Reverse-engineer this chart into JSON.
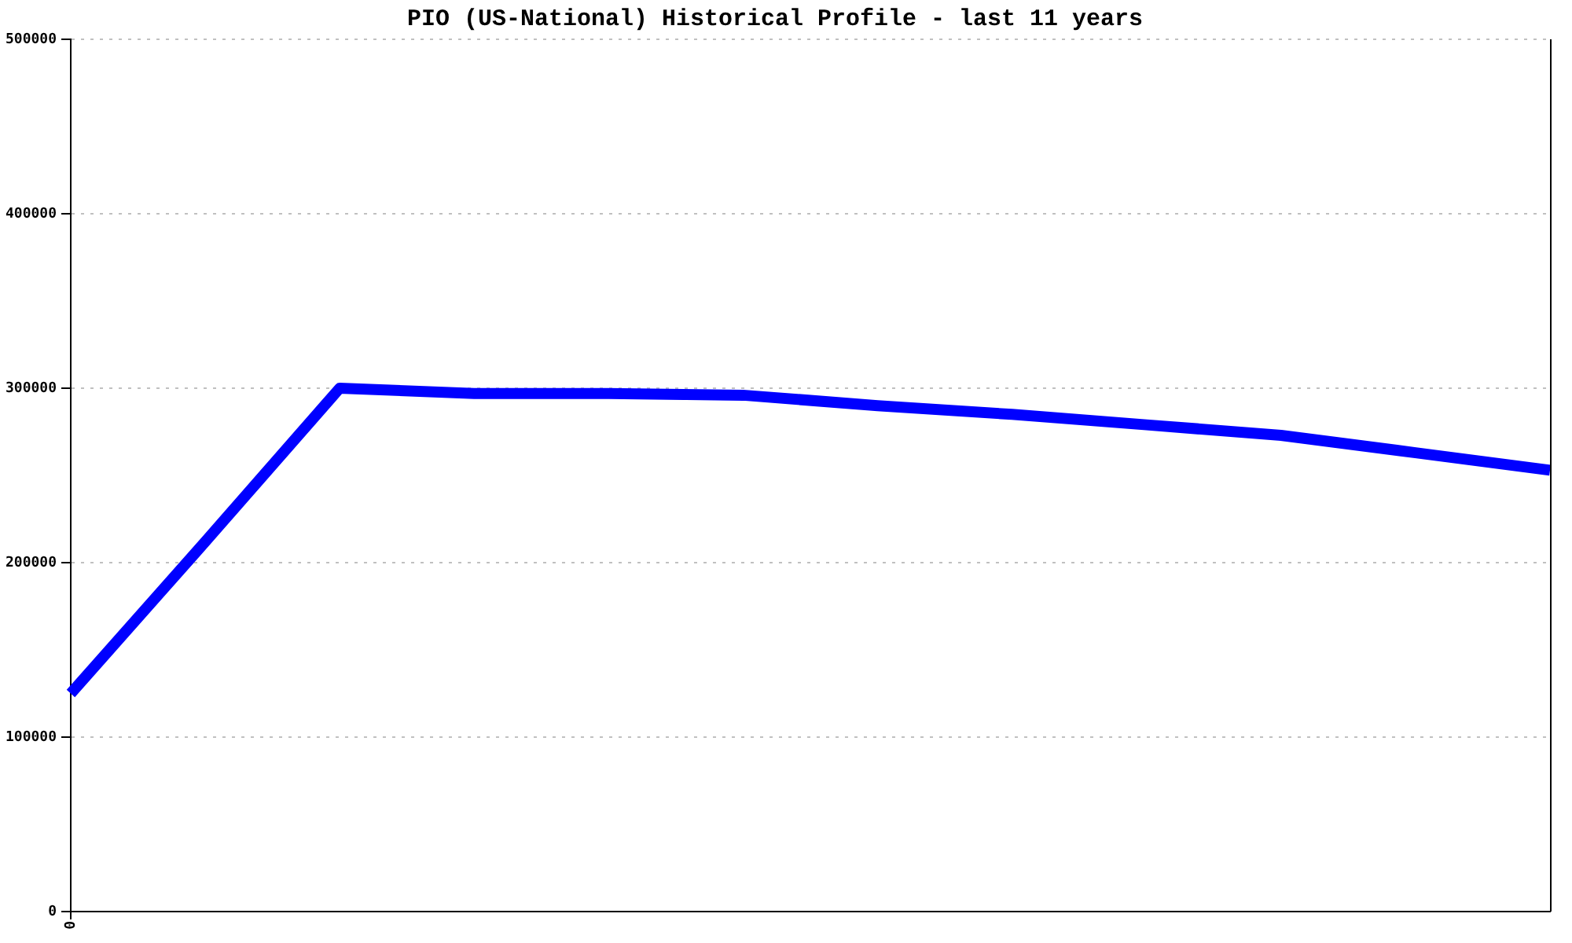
{
  "chart_data": {
    "type": "line",
    "title": "PIO (US-National) Historical Profile - last 11 years",
    "categories": [
      "0",
      null,
      null,
      null,
      null,
      null,
      null,
      null,
      null,
      null,
      null,
      null
    ],
    "series": [
      {
        "color": "#0000ff",
        "values": [
          125000,
          212000,
          300000,
          297000,
          297000,
          296000,
          290000,
          285000,
          279000,
          273000,
          263000,
          253000
        ]
      }
    ],
    "ylim": [
      0,
      500000
    ],
    "yticks": [
      0,
      100000,
      200000,
      300000,
      400000,
      500000
    ],
    "grid": "y",
    "marker": "none",
    "line_style": "solid"
  }
}
